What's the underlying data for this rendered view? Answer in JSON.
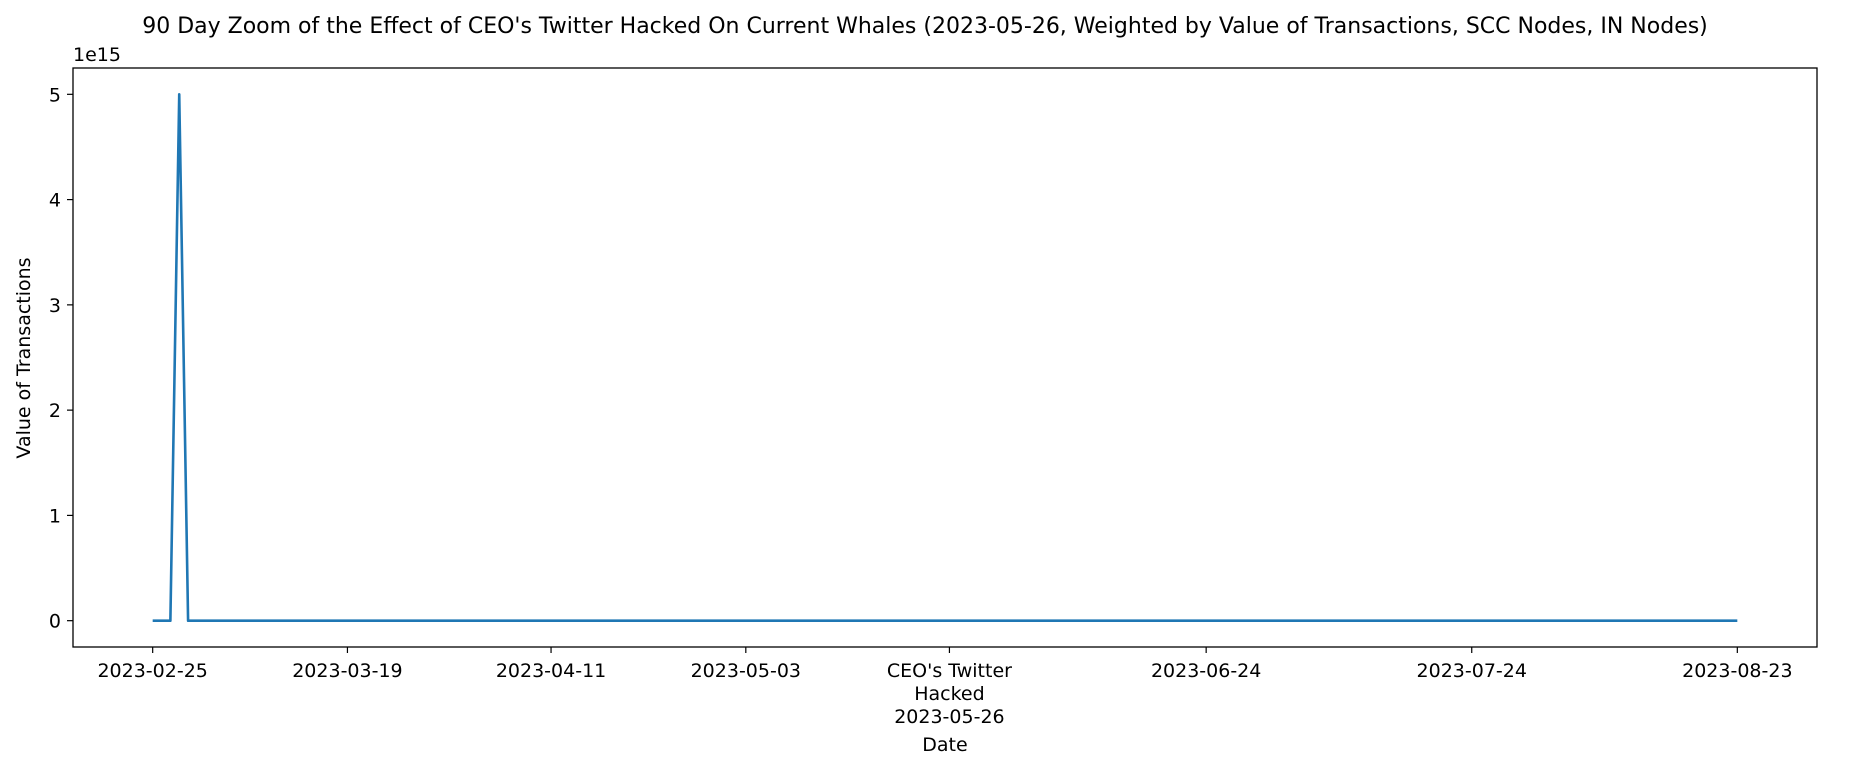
{
  "chart_data": {
    "type": "line",
    "title": "90 Day Zoom of the Effect of CEO's Twitter Hacked On Current Whales (2023-05-26, Weighted by Value of Transactions, SCC Nodes, IN Nodes)",
    "xlabel": "Date",
    "ylabel": "Value of Transactions",
    "y_offset_text": "1e15",
    "y_multiplier": 1000000000000000.0,
    "xlim": [
      "2023-02-16",
      "2023-09-01"
    ],
    "ylim": [
      -250000000000000.0,
      5250000000000000.0
    ],
    "y_ticks": [
      0,
      1000000000000000.0,
      2000000000000000.0,
      3000000000000000.0,
      4000000000000000.0,
      5000000000000000.0
    ],
    "y_tick_labels": [
      "0",
      "1",
      "2",
      "3",
      "4",
      "5"
    ],
    "x_ticks": [
      {
        "date": "2023-02-25",
        "label": "2023-02-25"
      },
      {
        "date": "2023-03-19",
        "label": "2023-03-19"
      },
      {
        "date": "2023-04-11",
        "label": "2023-04-11"
      },
      {
        "date": "2023-05-03",
        "label": "2023-05-03"
      },
      {
        "date": "2023-05-26",
        "label": "CEO's Twitter\nHacked\n2023-05-26"
      },
      {
        "date": "2023-06-24",
        "label": "2023-06-24"
      },
      {
        "date": "2023-07-24",
        "label": "2023-07-24"
      },
      {
        "date": "2023-08-23",
        "label": "2023-08-23"
      }
    ],
    "grid": false,
    "series": [
      {
        "color": "#1f77b4",
        "points": [
          [
            "2023-02-25",
            0
          ],
          [
            "2023-02-27",
            0
          ],
          [
            "2023-02-28",
            5000000000000000.0
          ],
          [
            "2023-03-01",
            0
          ],
          [
            "2023-08-23",
            0
          ]
        ]
      }
    ]
  }
}
